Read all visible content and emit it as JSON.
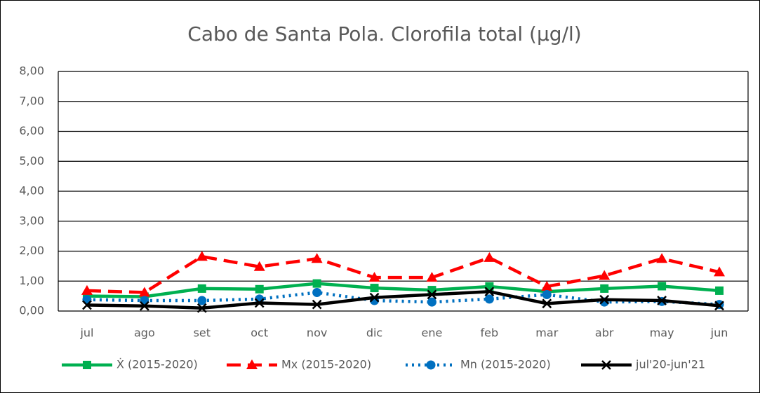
{
  "chart_data": {
    "type": "line",
    "title": "Cabo de Santa Pola. Clorofila total (µg/l)",
    "categories": [
      "jul",
      "ago",
      "set",
      "oct",
      "nov",
      "dic",
      "ene",
      "feb",
      "mar",
      "abr",
      "may",
      "jun"
    ],
    "series": [
      {
        "name": "Ẋ (2015-2020)",
        "color": "#00b050",
        "style": "solid",
        "marker": "square",
        "values": [
          0.5,
          0.48,
          0.75,
          0.73,
          0.92,
          0.77,
          0.7,
          0.82,
          0.65,
          0.75,
          0.83,
          0.68
        ]
      },
      {
        "name": "Mx (2015-2020)",
        "color": "#ff0000",
        "style": "dashed",
        "marker": "triangle",
        "values": [
          0.68,
          0.62,
          1.82,
          1.48,
          1.75,
          1.12,
          1.12,
          1.78,
          0.82,
          1.18,
          1.75,
          1.3
        ]
      },
      {
        "name": "Mn (2015-2020)",
        "color": "#0070c0",
        "style": "dotted",
        "marker": "circle",
        "values": [
          0.38,
          0.35,
          0.35,
          0.4,
          0.62,
          0.35,
          0.3,
          0.4,
          0.55,
          0.3,
          0.32,
          0.22
        ]
      },
      {
        "name": "jul'20-jun'21",
        "color": "#000000",
        "style": "solid",
        "marker": "x",
        "values": [
          0.2,
          0.17,
          0.1,
          0.27,
          0.22,
          0.45,
          0.55,
          0.65,
          0.25,
          0.38,
          0.35,
          0.18
        ]
      }
    ],
    "ylim": [
      0,
      8
    ],
    "yticks": [
      {
        "value": 0,
        "label": "0,00"
      },
      {
        "value": 1,
        "label": "1,00"
      },
      {
        "value": 2,
        "label": "2,00"
      },
      {
        "value": 3,
        "label": "3,00"
      },
      {
        "value": 4,
        "label": "4,00"
      },
      {
        "value": 5,
        "label": "5,00"
      },
      {
        "value": 6,
        "label": "6,00"
      },
      {
        "value": 7,
        "label": "7,00"
      },
      {
        "value": 8,
        "label": "8,00"
      }
    ],
    "grid": true,
    "legend": "bottom"
  }
}
